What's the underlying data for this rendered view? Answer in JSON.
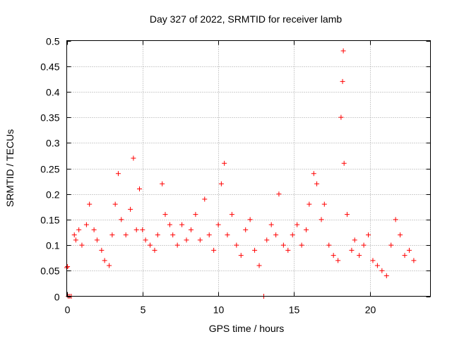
{
  "chart_data": {
    "type": "scatter",
    "title": "Day 327 of 2022, SRMTID for receiver lamb",
    "xlabel": "GPS time / hours",
    "ylabel": "SRMTID / TECUs",
    "xlim": [
      0,
      24
    ],
    "ylim": [
      0,
      0.5
    ],
    "x_ticks": [
      0,
      5,
      10,
      15,
      20
    ],
    "x_tick_labels": [
      "0",
      "5",
      "10",
      "15",
      "20"
    ],
    "y_ticks": [
      0,
      0.05,
      0.1,
      0.15,
      0.2,
      0.25,
      0.3,
      0.35,
      0.4,
      0.45,
      0.5
    ],
    "y_tick_labels": [
      "0",
      "0.05",
      "0.1",
      "0.15",
      "0.2",
      "0.25",
      "0.3",
      "0.35",
      "0.4",
      "0.45",
      "0.5"
    ],
    "grid": true,
    "marker": "+",
    "marker_color": "#ff0000",
    "series": [
      {
        "name": "SRMTID",
        "x": [
          0.0,
          0.05,
          0.1,
          0.2,
          0.3,
          0.5,
          0.6,
          0.8,
          1.0,
          1.3,
          1.5,
          1.8,
          2.0,
          2.3,
          2.5,
          2.8,
          3.0,
          3.2,
          3.4,
          3.6,
          3.9,
          4.2,
          4.4,
          4.6,
          4.8,
          5.0,
          5.2,
          5.5,
          5.8,
          6.0,
          6.3,
          6.5,
          6.8,
          7.0,
          7.3,
          7.6,
          7.9,
          8.2,
          8.5,
          8.8,
          9.1,
          9.4,
          9.7,
          10.0,
          10.2,
          10.4,
          10.6,
          10.9,
          11.2,
          11.5,
          11.8,
          12.1,
          12.4,
          12.7,
          13.0,
          13.2,
          13.5,
          13.8,
          14.0,
          14.3,
          14.6,
          14.9,
          15.2,
          15.5,
          15.8,
          16.0,
          16.3,
          16.5,
          16.8,
          17.0,
          17.3,
          17.6,
          17.9,
          18.1,
          18.2,
          18.25,
          18.3,
          18.5,
          18.8,
          19.0,
          19.3,
          19.6,
          19.9,
          20.2,
          20.5,
          20.8,
          21.1,
          21.4,
          21.7,
          22.0,
          22.3,
          22.6,
          22.9
        ],
        "y": [
          0.056,
          0.058,
          0.0,
          0.0,
          0.0,
          0.12,
          0.11,
          0.13,
          0.1,
          0.14,
          0.18,
          0.13,
          0.11,
          0.09,
          0.07,
          0.06,
          0.12,
          0.18,
          0.24,
          0.15,
          0.12,
          0.17,
          0.27,
          0.13,
          0.21,
          0.13,
          0.11,
          0.1,
          0.09,
          0.12,
          0.22,
          0.16,
          0.14,
          0.12,
          0.1,
          0.14,
          0.11,
          0.13,
          0.16,
          0.11,
          0.19,
          0.12,
          0.09,
          0.14,
          0.22,
          0.26,
          0.12,
          0.16,
          0.1,
          0.08,
          0.13,
          0.15,
          0.09,
          0.06,
          0.0,
          0.11,
          0.14,
          0.12,
          0.2,
          0.1,
          0.09,
          0.12,
          0.14,
          0.1,
          0.13,
          0.18,
          0.24,
          0.22,
          0.15,
          0.18,
          0.1,
          0.08,
          0.07,
          0.35,
          0.42,
          0.48,
          0.26,
          0.16,
          0.09,
          0.11,
          0.08,
          0.1,
          0.12,
          0.07,
          0.06,
          0.05,
          0.04,
          0.1,
          0.15,
          0.12,
          0.08,
          0.09,
          0.07
        ]
      }
    ]
  }
}
